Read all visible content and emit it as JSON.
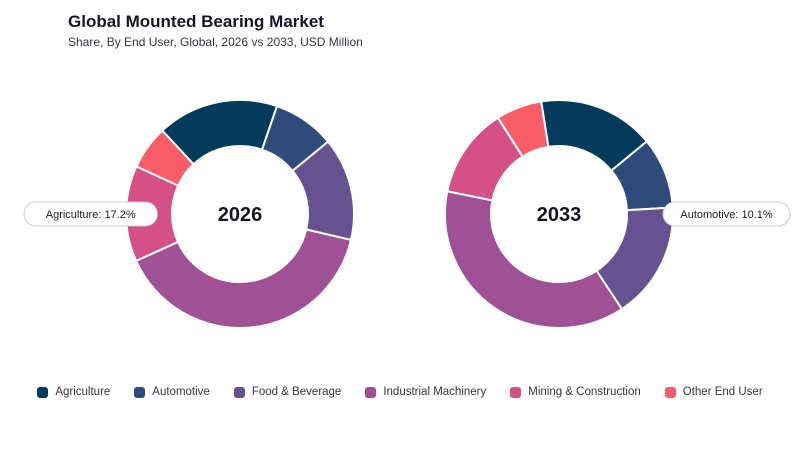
{
  "header": {
    "title": "Global Mounted Bearing Market",
    "subtitle": "Share, By End User, Global, 2026 vs 2033, USD Million"
  },
  "chart_data": [
    {
      "type": "pie",
      "variant": "donut",
      "center_label": "2026",
      "categories": [
        "Agriculture",
        "Automotive",
        "Food & Beverage",
        "Industrial Machinery",
        "Mining & Construction",
        "Other End User"
      ],
      "values": [
        17.2,
        8.8,
        14.6,
        39.6,
        13.6,
        6.2
      ],
      "callout": {
        "text": "Agriculture: 17.2%",
        "category": "Agriculture",
        "side": "left"
      }
    },
    {
      "type": "pie",
      "variant": "donut",
      "center_label": "2033",
      "categories": [
        "Agriculture",
        "Automotive",
        "Food & Beverage",
        "Industrial Machinery",
        "Mining & Construction",
        "Other End User"
      ],
      "values": [
        16.5,
        10.1,
        16.6,
        37.5,
        12.8,
        6.5
      ],
      "callout": {
        "text": "Automotive: 10.1%",
        "category": "Automotive",
        "side": "right"
      }
    }
  ],
  "legend": {
    "position": "bottom-center",
    "items": [
      {
        "label": "Agriculture",
        "color": "#043b5c"
      },
      {
        "label": "Automotive",
        "color": "#2f4b7c"
      },
      {
        "label": "Food & Beverage",
        "color": "#665191"
      },
      {
        "label": "Industrial Machinery",
        "color": "#a05195"
      },
      {
        "label": "Mining & Construction",
        "color": "#d45087"
      },
      {
        "label": "Other End User",
        "color": "#f95d6a"
      }
    ]
  }
}
